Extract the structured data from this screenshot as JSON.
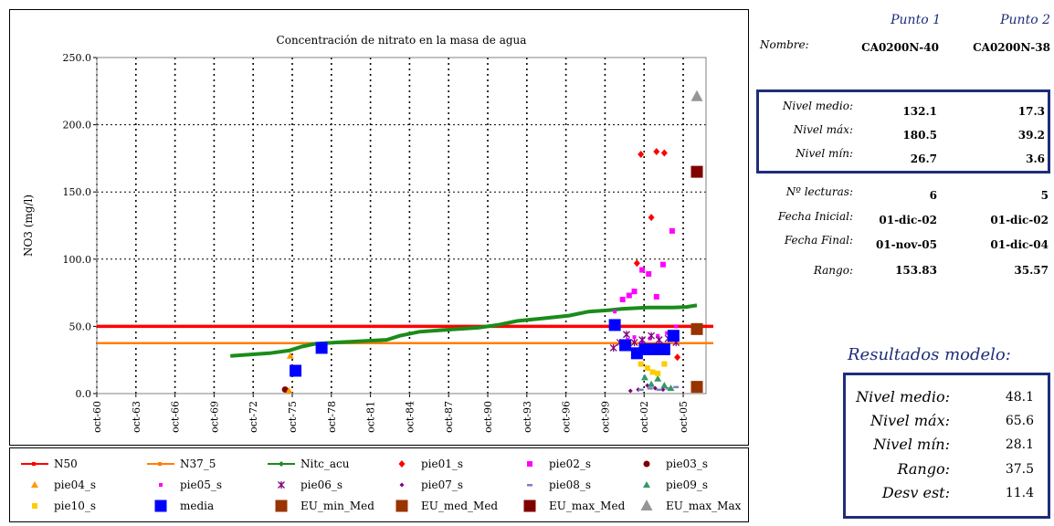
{
  "chart_data": {
    "type": "scatter",
    "title": "Concentración de nitrato en la masa de agua",
    "ylabel": "NO3 (mg/l)",
    "xlabel": "",
    "ylim": [
      0,
      250
    ],
    "yticks": [
      "0.0",
      "50.0",
      "100.0",
      "150.0",
      "200.0",
      "250.0"
    ],
    "ytick_values": [
      0,
      50,
      100,
      150,
      200,
      250
    ],
    "xticks": [
      "oct-60",
      "oct-63",
      "oct-66",
      "oct-69",
      "oct-72",
      "oct-75",
      "oct-78",
      "oct-81",
      "oct-84",
      "oct-87",
      "oct-90",
      "oct-93",
      "oct-96",
      "oct-99",
      "oct-02",
      "oct-05"
    ],
    "xlim": [
      1960.75,
      2007.5
    ],
    "grid": "vertical dotted",
    "legend": "bottom",
    "series": [
      {
        "name": "N50",
        "kind": "hline",
        "y": 50,
        "color": "#ff0000"
      },
      {
        "name": "N37_5",
        "kind": "hline",
        "y": 37.5,
        "color": "#ff7f00"
      },
      {
        "name": "Nitc_acu",
        "kind": "curve",
        "color": "#1a8c1a",
        "points": [
          [
            1971,
            28
          ],
          [
            1972.5,
            29
          ],
          [
            1974,
            30
          ],
          [
            1975.5,
            32
          ],
          [
            1976.5,
            35
          ],
          [
            1977.5,
            37
          ],
          [
            1979,
            38
          ],
          [
            1981,
            39
          ],
          [
            1983,
            40
          ],
          [
            1984,
            43
          ],
          [
            1985.5,
            46
          ],
          [
            1987,
            47
          ],
          [
            1988.5,
            48
          ],
          [
            1990,
            49
          ],
          [
            1991.5,
            51
          ],
          [
            1993,
            54
          ],
          [
            1995,
            56
          ],
          [
            1997,
            58
          ],
          [
            1998.5,
            61
          ],
          [
            2000,
            62
          ],
          [
            2001,
            63
          ],
          [
            2002,
            63.5
          ],
          [
            2003,
            64
          ],
          [
            2004,
            64
          ],
          [
            2005,
            64
          ],
          [
            2006,
            64.5
          ],
          [
            2006.8,
            65.6
          ]
        ]
      },
      {
        "name": "pie01_s",
        "marker": "diamond",
        "color": "#ff0000",
        "points": [
          [
            2002.2,
            97
          ],
          [
            2002.5,
            178
          ],
          [
            2003.3,
            131
          ],
          [
            2003.7,
            180
          ],
          [
            2004.3,
            179
          ],
          [
            2005.3,
            27
          ]
        ]
      },
      {
        "name": "pie02_s",
        "marker": "square",
        "color": "#ff00ff",
        "points": [
          [
            2001.1,
            70
          ],
          [
            2001.6,
            73
          ],
          [
            2002.0,
            76
          ],
          [
            2002.6,
            92
          ],
          [
            2003.1,
            89
          ],
          [
            2003.7,
            72
          ],
          [
            2004.2,
            96
          ],
          [
            2004.9,
            121
          ]
        ]
      },
      {
        "name": "pie03_s",
        "marker": "circle",
        "color": "#7f0000",
        "points": [
          [
            1975.2,
            3
          ]
        ]
      },
      {
        "name": "pie04_s",
        "marker": "triangle",
        "color": "#ff9900",
        "points": [
          [
            1975.5,
            2
          ],
          [
            1975.6,
            28
          ]
        ]
      },
      {
        "name": "pie05_s",
        "marker": "smallsquare",
        "color": "#ff00ff",
        "points": [
          [
            2000.5,
            61
          ],
          [
            2001.0,
            39
          ],
          [
            2001.5,
            40
          ],
          [
            2002.0,
            42
          ],
          [
            2002.6,
            38
          ],
          [
            2003.2,
            41
          ],
          [
            2003.8,
            43
          ],
          [
            2004.5,
            45
          ],
          [
            2005.2,
            50
          ]
        ]
      },
      {
        "name": "pie06_s",
        "marker": "x",
        "color": "#800080",
        "points": [
          [
            2000.4,
            34
          ],
          [
            2000.9,
            38
          ],
          [
            2001.4,
            44
          ],
          [
            2002.0,
            38
          ],
          [
            2002.6,
            40
          ],
          [
            2003.3,
            43
          ],
          [
            2003.9,
            40
          ],
          [
            2004.6,
            41
          ],
          [
            2005.2,
            38
          ]
        ]
      },
      {
        "name": "pie07_s",
        "marker": "smalldiamond",
        "color": "#800080",
        "points": [
          [
            2001.7,
            2
          ],
          [
            2002.3,
            3
          ],
          [
            2003.0,
            6
          ],
          [
            2003.6,
            4
          ],
          [
            2004.2,
            3
          ],
          [
            2004.8,
            4
          ]
        ]
      },
      {
        "name": "pie08_s",
        "marker": "dash",
        "color": "#7f7fbf",
        "points": [
          [
            2002.5,
            3
          ],
          [
            2003.2,
            4
          ],
          [
            2003.9,
            3
          ],
          [
            2004.6,
            4
          ],
          [
            2005.2,
            5
          ]
        ]
      },
      {
        "name": "pie09_s",
        "marker": "triangle",
        "color": "#339966",
        "points": [
          [
            2002.8,
            12
          ],
          [
            2003.3,
            7
          ],
          [
            2003.8,
            11
          ],
          [
            2004.3,
            6
          ],
          [
            2004.8,
            4
          ]
        ]
      },
      {
        "name": "pie10_s",
        "marker": "square",
        "color": "#ffcc00",
        "points": [
          [
            2002.5,
            22
          ],
          [
            2003.0,
            19
          ],
          [
            2003.4,
            16
          ],
          [
            2003.8,
            15
          ],
          [
            2004.3,
            22
          ]
        ]
      },
      {
        "name": "media",
        "marker": "bigsquare",
        "color": "#0000ff",
        "points": [
          [
            1976,
            17
          ],
          [
            1978,
            34
          ],
          [
            2000.5,
            51
          ],
          [
            2001.3,
            36
          ],
          [
            2002.2,
            30
          ],
          [
            2002.8,
            33
          ],
          [
            2003.3,
            33
          ],
          [
            2003.8,
            33
          ],
          [
            2004.3,
            33
          ],
          [
            2005.0,
            43
          ]
        ]
      },
      {
        "name": "EU_min_Med",
        "marker": "bigsquare",
        "color": "#993300",
        "points": [
          [
            2006.8,
            5
          ]
        ]
      },
      {
        "name": "EU_med_Med",
        "marker": "bigsquare",
        "color": "#993300",
        "points": [
          [
            2006.8,
            48
          ]
        ]
      },
      {
        "name": "EU_max_Med",
        "marker": "bigsquare",
        "color": "#800000",
        "points": [
          [
            2006.8,
            165
          ]
        ]
      },
      {
        "name": "EU_max_Max",
        "marker": "bigtriangle",
        "color": "#969696",
        "points": [
          [
            2006.8,
            221
          ]
        ]
      }
    ]
  },
  "table": {
    "col1": "Punto 1",
    "col2": "Punto 2",
    "nombre_label": "Nombre:",
    "nombre1": "CA0200N-40",
    "nombre2": "CA0200N-38",
    "medio_label": "Nivel medio:",
    "medio1": "132.1",
    "medio2": "17.3",
    "max_label": "Nivel máx:",
    "max1": "180.5",
    "max2": "39.2",
    "min_label": "Nivel mín:",
    "min1": "26.7",
    "min2": "3.6",
    "lecturas_label": "Nº lecturas:",
    "lecturas1": "6",
    "lecturas2": "5",
    "fini_label": "Fecha Inicial:",
    "fini1": "01-dic-02",
    "fini2": "01-dic-02",
    "ffin_label": "Fecha Final:",
    "ffin1": "01-nov-05",
    "ffin2": "01-dic-04",
    "rango_label": "Rango:",
    "rango1": "153.83",
    "rango2": "35.57"
  },
  "model": {
    "title": "Resultados modelo:",
    "medio_label": "Nivel medio:",
    "medio": "48.1",
    "max_label": "Nivel máx:",
    "max": "65.6",
    "min_label": "Nivel mín:",
    "min": "28.1",
    "rango_label": "Rango:",
    "rango": "37.5",
    "desv_label": "Desv est:",
    "desv": "11.4"
  },
  "colors": {
    "accent": "#1f2d7a"
  }
}
